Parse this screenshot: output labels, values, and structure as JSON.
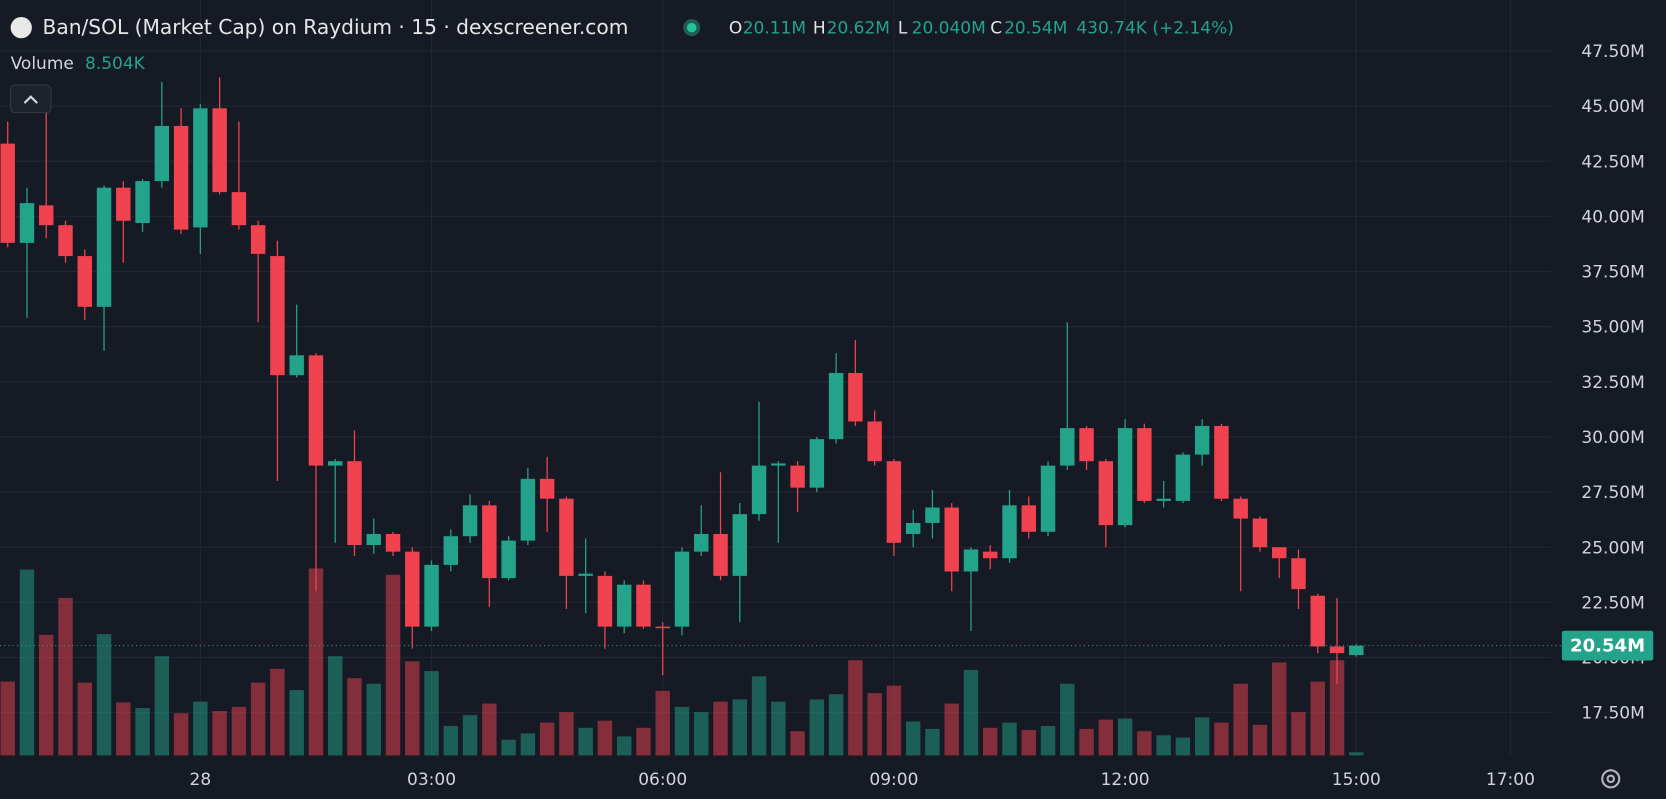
{
  "chart_data": {
    "type": "candlestick",
    "title": "Ban/SOL (Market Cap) on Raydium · 15 · dexscreener.com",
    "ohlc_labels": [
      {
        "key": "O",
        "value": "20.11M"
      },
      {
        "key": "H",
        "value": "20.62M"
      },
      {
        "key": "L",
        "value": "20.040M"
      },
      {
        "key": "C",
        "value": "20.54M"
      }
    ],
    "change_label": "430.74K (+2.14%)",
    "volume_title": "Volume",
    "volume_value_label": "8.504K",
    "last_label": {
      "value": 20.54,
      "label": "20.54M"
    },
    "colors": {
      "up": "#22a38a",
      "down": "#f0424f"
    },
    "grid": true,
    "x": [
      -2.5,
      -2.25,
      -2,
      -1.75,
      -1.5,
      -1.25,
      -1,
      -0.75,
      -0.5,
      -0.25,
      0,
      0.25,
      0.5,
      0.75,
      1,
      1.25,
      1.5,
      1.75,
      2,
      2.25,
      2.5,
      2.75,
      3,
      3.25,
      3.5,
      3.75,
      4,
      4.25,
      4.5,
      4.75,
      5,
      5.25,
      5.5,
      5.75,
      6,
      6.25,
      6.5,
      6.75,
      7,
      7.25,
      7.5,
      7.75,
      8,
      8.25,
      8.5,
      8.75,
      9,
      9.25,
      9.5,
      9.75,
      10,
      10.25,
      10.5,
      10.75,
      11,
      11.25,
      11.5,
      11.75,
      12,
      12.25,
      12.5,
      12.75,
      13,
      13.25,
      13.5,
      13.75,
      14,
      14.25,
      14.5,
      14.75,
      15
    ],
    "open": [
      43.3,
      38.8,
      40.5,
      39.6,
      38.2,
      35.9,
      41.3,
      39.7,
      41.6,
      44.1,
      39.5,
      44.9,
      41.1,
      39.6,
      38.2,
      32.8,
      33.7,
      28.7,
      28.9,
      25.1,
      25.6,
      24.8,
      21.4,
      24.2,
      25.5,
      26.9,
      23.6,
      25.3,
      28.1,
      27.2,
      23.7,
      23.7,
      21.4,
      23.3,
      21.4,
      21.4,
      24.8,
      25.6,
      23.7,
      26.5,
      28.7,
      28.7,
      27.7,
      29.9,
      32.9,
      30.7,
      28.9,
      25.6,
      26.1,
      26.8,
      23.9,
      24.8,
      24.5,
      26.9,
      25.7,
      28.7,
      30.4,
      28.9,
      26.0,
      30.4,
      27.1,
      27.1,
      29.2,
      30.5,
      27.2,
      26.3,
      25.0,
      24.5,
      22.8,
      20.5,
      20.11
    ],
    "high": [
      44.3,
      41.3,
      44.8,
      39.8,
      38.5,
      41.4,
      41.6,
      41.7,
      46.1,
      44.9,
      45.1,
      46.3,
      44.3,
      39.8,
      38.9,
      36.0,
      33.8,
      29.0,
      30.3,
      26.3,
      25.7,
      25.0,
      24.4,
      25.8,
      27.4,
      27.1,
      25.5,
      28.6,
      29.1,
      27.3,
      25.4,
      23.9,
      23.5,
      23.5,
      21.6,
      25.0,
      26.9,
      28.4,
      27.0,
      31.6,
      28.9,
      28.9,
      30.0,
      33.8,
      34.4,
      31.2,
      29.0,
      26.7,
      27.6,
      27.0,
      25.0,
      25.1,
      27.6,
      27.3,
      28.9,
      35.2,
      30.5,
      29.0,
      30.8,
      30.6,
      28.0,
      29.3,
      30.8,
      30.6,
      27.3,
      26.4,
      25.0,
      24.9,
      22.9,
      22.7,
      20.62
    ],
    "low": [
      38.6,
      35.4,
      39.0,
      37.9,
      35.3,
      33.9,
      37.9,
      39.3,
      41.3,
      39.2,
      38.3,
      41.0,
      39.4,
      35.2,
      28.0,
      32.7,
      23.0,
      25.2,
      24.6,
      24.7,
      24.6,
      20.4,
      21.2,
      23.9,
      25.2,
      22.3,
      23.5,
      25.1,
      25.7,
      22.2,
      22.0,
      20.4,
      21.1,
      21.3,
      19.2,
      21.0,
      24.6,
      23.5,
      21.6,
      26.2,
      25.2,
      26.6,
      27.5,
      29.7,
      30.5,
      28.7,
      24.6,
      25.0,
      25.4,
      23.0,
      21.2,
      24.0,
      24.3,
      25.4,
      25.5,
      28.5,
      28.5,
      25.0,
      25.9,
      27.0,
      26.8,
      27.0,
      28.7,
      27.1,
      23.0,
      24.8,
      23.6,
      22.2,
      20.2,
      18.8,
      20.04
    ],
    "close": [
      38.8,
      40.6,
      39.6,
      38.2,
      35.9,
      41.3,
      39.8,
      41.6,
      44.1,
      39.4,
      44.9,
      41.1,
      39.6,
      38.3,
      32.8,
      33.7,
      28.7,
      28.9,
      25.1,
      25.6,
      24.8,
      21.4,
      24.2,
      25.5,
      26.9,
      23.6,
      25.3,
      28.1,
      27.2,
      23.7,
      23.8,
      21.4,
      23.3,
      21.4,
      21.35,
      24.8,
      25.6,
      23.7,
      26.5,
      28.7,
      28.8,
      27.7,
      29.9,
      32.9,
      30.7,
      28.9,
      25.2,
      26.1,
      26.8,
      23.9,
      24.9,
      24.5,
      26.9,
      25.7,
      28.7,
      30.4,
      28.9,
      26.0,
      30.4,
      27.1,
      27.2,
      29.2,
      30.5,
      27.2,
      26.3,
      25.0,
      24.5,
      23.1,
      20.5,
      20.2,
      20.54
    ],
    "volume": [
      198,
      498,
      323,
      422,
      195,
      325,
      142,
      127,
      266,
      113,
      144,
      119,
      130,
      195,
      232,
      175,
      501,
      266,
      207,
      192,
      484,
      252,
      226,
      79,
      108,
      139,
      42,
      59,
      88,
      116,
      74,
      93,
      51,
      74,
      173,
      130,
      116,
      144,
      150,
      212,
      144,
      65,
      150,
      164,
      255,
      167,
      187,
      91,
      71,
      139,
      229,
      74,
      88,
      68,
      79,
      192,
      71,
      96,
      99,
      65,
      54,
      48,
      102,
      88,
      192,
      82,
      249,
      116,
      198,
      255,
      8.504
    ],
    "xlim": [
      -2.6,
      17.53
    ],
    "xticks": [
      {
        "value": 0,
        "label": "28"
      },
      {
        "value": 3,
        "label": "03:00"
      },
      {
        "value": 6,
        "label": "06:00"
      },
      {
        "value": 9,
        "label": "09:00"
      },
      {
        "value": 12,
        "label": "12:00"
      },
      {
        "value": 15,
        "label": "15:00"
      },
      {
        "value": 17,
        "label": "17:00"
      }
    ],
    "ylim": [
      15.56,
      49.81
    ],
    "yticks": [
      {
        "value": 47.5,
        "label": "47.50M"
      },
      {
        "value": 45,
        "label": "45.00M"
      },
      {
        "value": 42.5,
        "label": "42.50M"
      },
      {
        "value": 40,
        "label": "40.00M"
      },
      {
        "value": 37.5,
        "label": "37.50M"
      },
      {
        "value": 35,
        "label": "35.00M"
      },
      {
        "value": 32.5,
        "label": "32.50M"
      },
      {
        "value": 30,
        "label": "30.00M"
      },
      {
        "value": 27.5,
        "label": "27.50M"
      },
      {
        "value": 25,
        "label": "25.00M"
      },
      {
        "value": 22.5,
        "label": "22.50M"
      },
      {
        "value": 20,
        "label": "20.00M"
      },
      {
        "value": 17.5,
        "label": "17.50M"
      }
    ]
  }
}
